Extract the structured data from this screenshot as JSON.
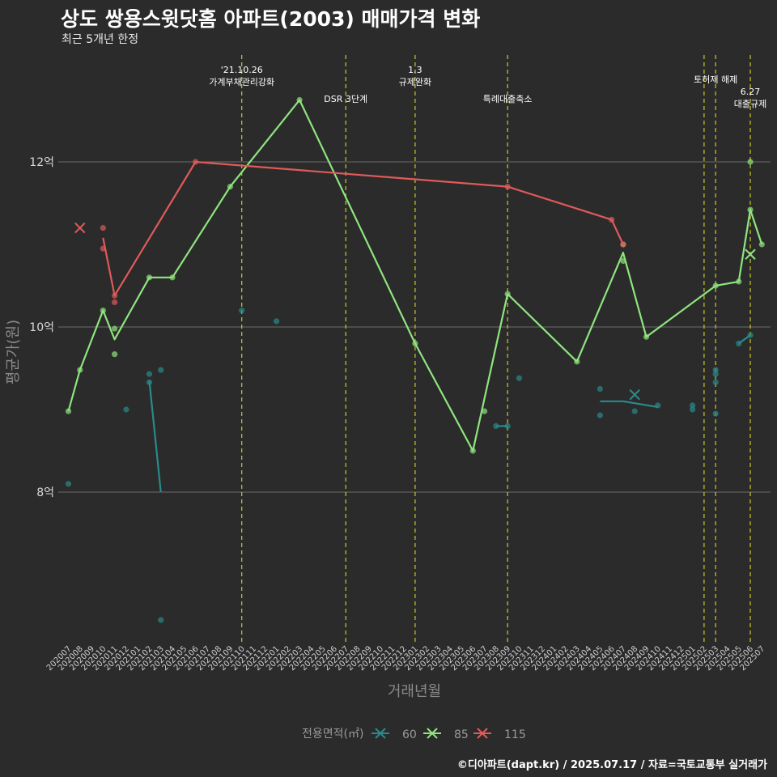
{
  "title": "상도 쌍용스윗닷홈 아파트(2003) 매매가격 변화",
  "subtitle": "최근 5개년 한정",
  "caption": "©디아파트(dapt.kr) / 2025.07.17 / 자료=국토교통부 실거래가",
  "chart_data": {
    "type": "line",
    "xlabel": "거래년월",
    "ylabel": "평균가(원)",
    "categories": [
      "202007",
      "202008",
      "202009",
      "202010",
      "202011",
      "202012",
      "202101",
      "202102",
      "202103",
      "202104",
      "202105",
      "202106",
      "202107",
      "202108",
      "202109",
      "202110",
      "202111",
      "202112",
      "202201",
      "202202",
      "202203",
      "202204",
      "202205",
      "202206",
      "202207",
      "202208",
      "202209",
      "202210",
      "202211",
      "202212",
      "202301",
      "202302",
      "202303",
      "202304",
      "202305",
      "202306",
      "202307",
      "202308",
      "202309",
      "202310",
      "202311",
      "202312",
      "202401",
      "202402",
      "202403",
      "202404",
      "202405",
      "202406",
      "202407",
      "202408",
      "202409",
      "202410",
      "202411",
      "202412",
      "202501",
      "202502",
      "202503",
      "202504",
      "202505",
      "202506",
      "202507"
    ],
    "y_ticks": [
      {
        "value": 8,
        "label": "8억"
      },
      {
        "value": 10,
        "label": "10억"
      },
      {
        "value": 12,
        "label": "12억"
      }
    ],
    "ylim": [
      6.2,
      13.4
    ],
    "grid": true,
    "legend": {
      "title": "전용면적(㎡)",
      "position": "bottom"
    },
    "series": [
      {
        "name": "60",
        "color": "#2a8a8c",
        "line_segments": [
          [
            [
              "202102",
              9.35
            ],
            [
              "202103",
              8.0
            ]
          ],
          [
            [
              "202308",
              8.8
            ],
            [
              "202309",
              8.8
            ]
          ],
          [
            [
              "202405",
              9.1
            ],
            [
              "202407",
              9.1
            ],
            [
              "202410",
              9.03
            ]
          ],
          [
            [
              "202505",
              9.8
            ],
            [
              "202506",
              9.9
            ]
          ]
        ],
        "points": [
          [
            "202007",
            8.1
          ],
          [
            "202102",
            9.43
          ],
          [
            "202102",
            9.33
          ],
          [
            "202103",
            9.48
          ],
          [
            "202103",
            6.45
          ],
          [
            "202012",
            9.0
          ],
          [
            "202110",
            10.2
          ],
          [
            "202201",
            10.07
          ],
          [
            "202308",
            8.8
          ],
          [
            "202309",
            8.8
          ],
          [
            "202310",
            9.38
          ],
          [
            "202405",
            9.25
          ],
          [
            "202405",
            8.93
          ],
          [
            "202408",
            8.98
          ],
          [
            "202410",
            9.05
          ],
          [
            "202501",
            9.05
          ],
          [
            "202501",
            9.0
          ],
          [
            "202503",
            9.48
          ],
          [
            "202503",
            9.43
          ],
          [
            "202503",
            9.33
          ],
          [
            "202503",
            8.95
          ],
          [
            "202505",
            9.8
          ],
          [
            "202506",
            9.9
          ]
        ],
        "latest": [
          "202408",
          9.18
        ]
      },
      {
        "name": "85",
        "color": "#8ee57e",
        "line": [
          [
            "202007",
            8.98
          ],
          [
            "202008",
            9.48
          ],
          [
            "202010",
            10.2
          ],
          [
            "202011",
            9.85
          ],
          [
            "202102",
            10.6
          ],
          [
            "202104",
            10.6
          ],
          [
            "202109",
            11.7
          ],
          [
            "202203",
            12.75
          ],
          [
            "202301",
            9.8
          ],
          [
            "202306",
            8.5
          ],
          [
            "202309",
            10.4
          ],
          [
            "202403",
            9.58
          ],
          [
            "202407",
            10.9
          ],
          [
            "202409",
            9.88
          ],
          [
            "202503",
            10.5
          ],
          [
            "202505",
            10.55
          ],
          [
            "202506",
            11.42
          ],
          [
            "202507",
            11.0
          ]
        ],
        "points": [
          [
            "202007",
            8.98
          ],
          [
            "202008",
            9.48
          ],
          [
            "202010",
            10.2
          ],
          [
            "202011",
            9.98
          ],
          [
            "202011",
            9.67
          ],
          [
            "202102",
            10.6
          ],
          [
            "202104",
            10.6
          ],
          [
            "202109",
            11.7
          ],
          [
            "202203",
            12.75
          ],
          [
            "202301",
            9.8
          ],
          [
            "202306",
            8.5
          ],
          [
            "202307",
            8.98
          ],
          [
            "202309",
            10.4
          ],
          [
            "202403",
            9.58
          ],
          [
            "202407",
            10.8
          ],
          [
            "202407",
            11.0
          ],
          [
            "202409",
            9.88
          ],
          [
            "202503",
            10.5
          ],
          [
            "202505",
            10.55
          ],
          [
            "202506",
            12.0
          ],
          [
            "202506",
            11.42
          ],
          [
            "202507",
            11.0
          ]
        ],
        "latest": [
          "202506",
          10.88
        ]
      },
      {
        "name": "115",
        "color": "#e05a5a",
        "line": [
          [
            "202010",
            11.08
          ],
          [
            "202011",
            10.38
          ],
          [
            "202106",
            12.0
          ],
          [
            "202309",
            11.7
          ],
          [
            "202406",
            11.3
          ],
          [
            "202407",
            11.0
          ]
        ],
        "points": [
          [
            "202010",
            11.2
          ],
          [
            "202010",
            10.95
          ],
          [
            "202011",
            10.38
          ],
          [
            "202011",
            10.3
          ],
          [
            "202106",
            12.0
          ],
          [
            "202309",
            11.7
          ],
          [
            "202406",
            11.3
          ],
          [
            "202407",
            11.0
          ]
        ],
        "latest": [
          "202008",
          11.2
        ]
      }
    ],
    "events": [
      {
        "month": "202110",
        "lines": [
          "'21.10.26",
          "가계부채관리강화"
        ],
        "row": 0
      },
      {
        "month": "202207",
        "lines": [
          "DSR 3단계"
        ],
        "row": 1
      },
      {
        "month": "202301",
        "lines": [
          "1.3",
          "규제완화"
        ],
        "row": 0
      },
      {
        "month": "202309",
        "lines": [
          "특례대출축소"
        ],
        "row": 1
      },
      {
        "month": "202502",
        "lines": [],
        "row": 0
      },
      {
        "month": "202503",
        "lines": [
          "토허제 해제"
        ],
        "row": 0
      },
      {
        "month": "202506",
        "lines": [
          "6.27",
          "대출규제"
        ],
        "row": 2
      }
    ]
  }
}
